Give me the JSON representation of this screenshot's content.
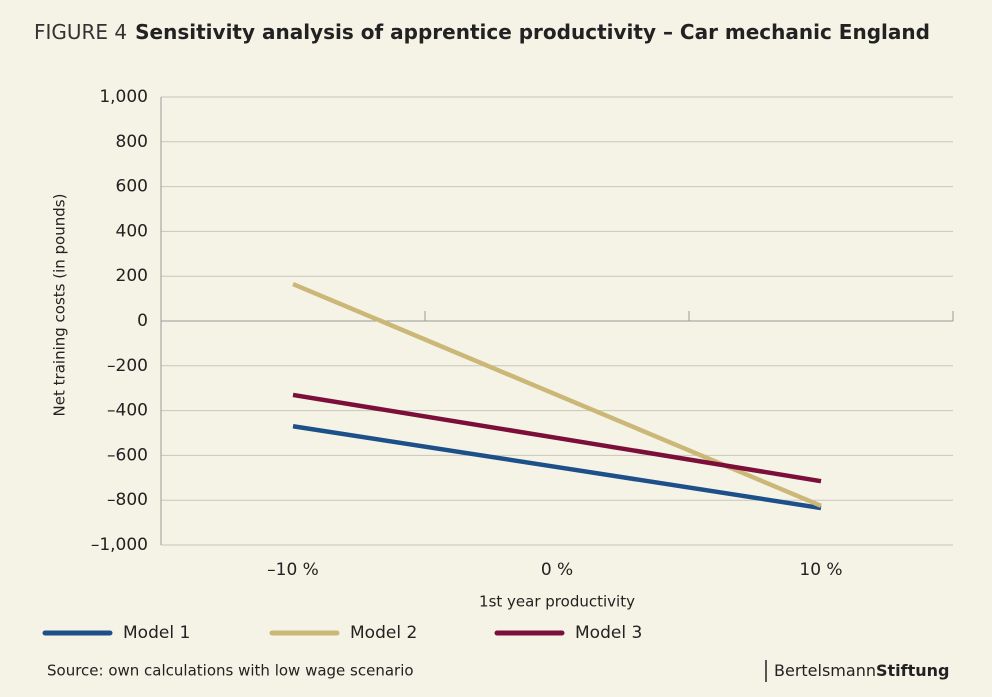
{
  "chart_data": {
    "type": "line",
    "figure_label": "FIGURE 4",
    "title": "Sensitivity analysis of apprentice productivity – Car mechanic England",
    "categories": [
      "–10 %",
      "0 %",
      "10 %"
    ],
    "series": [
      {
        "name": "Model 1",
        "color": "#1d4f8a",
        "values": [
          -470,
          -652,
          -835
        ]
      },
      {
        "name": "Model 2",
        "color": "#cbb878",
        "values": [
          165,
          -330,
          -825
        ]
      },
      {
        "name": "Model 3",
        "color": "#7b0f3a",
        "values": [
          -330,
          -522,
          -715
        ]
      }
    ],
    "ylim": [
      -1000,
      1000
    ],
    "yticks": [
      {
        "value": 1000,
        "label": "1,000"
      },
      800,
      600,
      400,
      200,
      0,
      {
        "value": -200,
        "label": "–200"
      },
      {
        "value": -400,
        "label": "–400"
      },
      {
        "value": -600,
        "label": "–600"
      },
      {
        "value": -800,
        "label": "–800"
      },
      {
        "value": -1000,
        "label": "–1,000"
      }
    ],
    "grid": true,
    "xlabel": "1st year productivity",
    "ylabel": "Net training costs (in pounds)",
    "legend": "bottom",
    "source": "Source: own calculations with low wage scenario",
    "brand": {
      "light": "Bertelsmann",
      "bold": "Stiftung"
    }
  }
}
